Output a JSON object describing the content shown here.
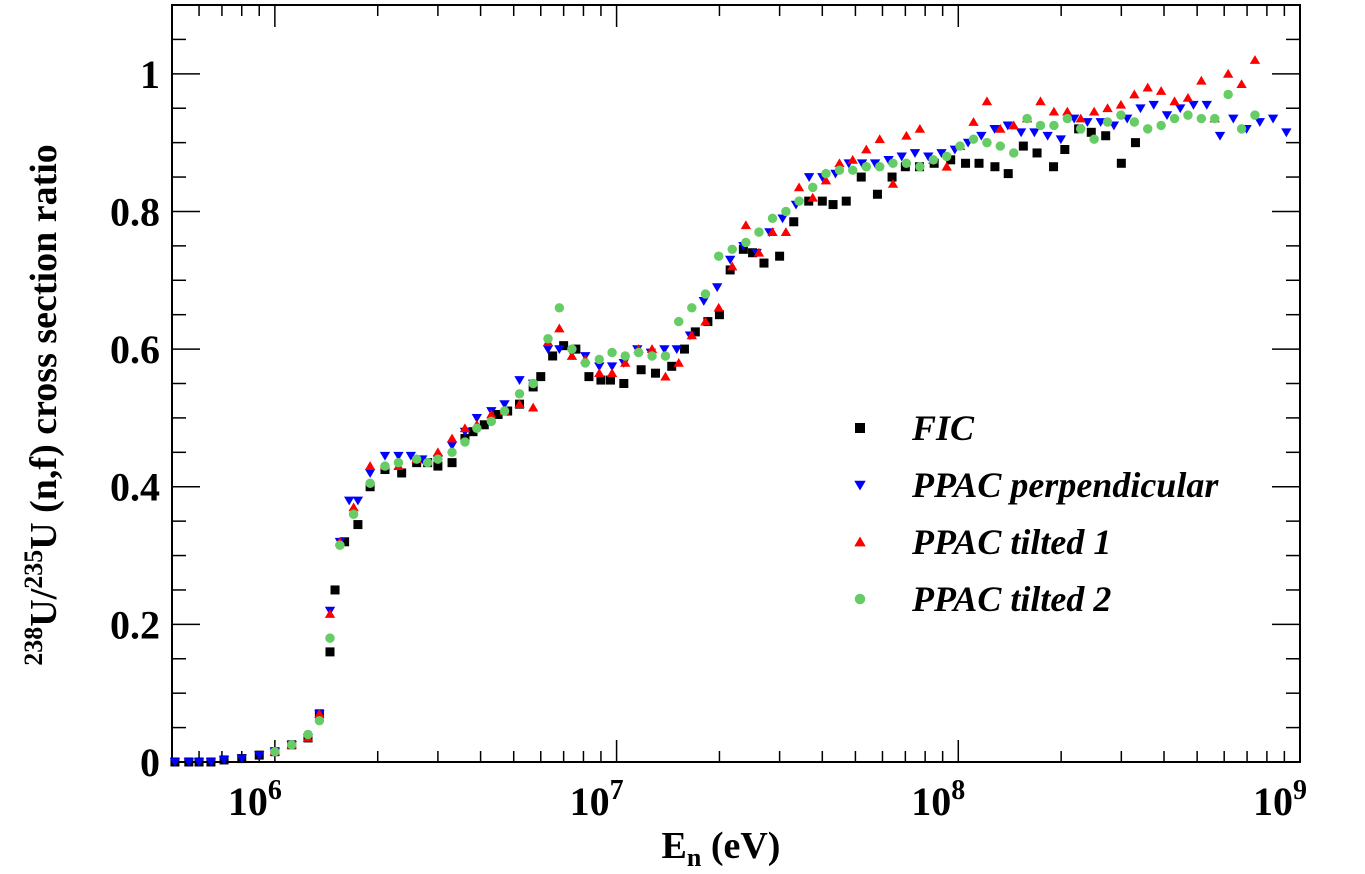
{
  "chart_data": {
    "type": "scatter",
    "xlabel": {
      "main": "E",
      "sub": "n",
      "rest": " (eV)"
    },
    "ylabel": {
      "sup1": "238",
      "mid1": "U/",
      "sup2": "235",
      "rest": "U (n,f) cross section ratio"
    },
    "x_scale": "log",
    "xlim": [
      500000,
      1000000000
    ],
    "ylim": [
      0,
      1.1
    ],
    "x_ticks": [
      {
        "value": 1000000,
        "base": "10",
        "exp": "6"
      },
      {
        "value": 10000000,
        "base": "10",
        "exp": "7"
      },
      {
        "value": 100000000,
        "base": "10",
        "exp": "8"
      },
      {
        "value": 1000000000,
        "base": "10",
        "exp": "9"
      }
    ],
    "y_ticks": [
      {
        "value": 0,
        "label": "0"
      },
      {
        "value": 0.2,
        "label": "0.2"
      },
      {
        "value": 0.4,
        "label": "0.4"
      },
      {
        "value": 0.6,
        "label": "0.6"
      },
      {
        "value": 0.8,
        "label": "0.8"
      },
      {
        "value": 1.0,
        "label": "1"
      }
    ],
    "grid": false,
    "legend_position": "center-right",
    "series": [
      {
        "name": "FIC",
        "marker": "square",
        "color": "#000000",
        "x": [
          510000,
          560000,
          600000,
          650000,
          710000,
          800000,
          900000,
          1000000,
          1120000,
          1250000,
          1350000,
          1450000,
          1500000,
          1600000,
          1750000,
          1900000,
          2100000,
          2350000,
          2600000,
          2800000,
          3000000,
          3300000,
          3600000,
          3800000,
          4100000,
          4500000,
          4800000,
          5200000,
          5700000,
          6000000,
          6500000,
          7000000,
          7600000,
          8300000,
          9000000,
          9600000,
          10500000,
          11800000,
          13000000,
          14500000,
          15800000,
          17000000,
          18500000,
          20000000,
          21500000,
          23500000,
          25000000,
          27000000,
          30000000,
          33000000,
          36500000,
          40000000,
          43000000,
          47000000,
          52000000,
          58000000,
          64000000,
          70000000,
          77000000,
          85000000,
          95000000,
          105000000,
          115000000,
          128000000,
          140000000,
          155000000,
          170000000,
          190000000,
          205000000,
          225000000,
          245000000,
          270000000,
          300000000,
          330000000
        ],
        "y": [
          0.0,
          0.0,
          0.0,
          0.0,
          0.003,
          0.005,
          0.01,
          0.015,
          0.025,
          0.035,
          0.07,
          0.16,
          0.25,
          0.32,
          0.345,
          0.4,
          0.425,
          0.42,
          0.435,
          0.435,
          0.43,
          0.435,
          0.47,
          0.48,
          0.49,
          0.505,
          0.51,
          0.52,
          0.545,
          0.56,
          0.59,
          0.605,
          0.6,
          0.56,
          0.555,
          0.555,
          0.55,
          0.57,
          0.565,
          0.575,
          0.6,
          0.625,
          0.64,
          0.65,
          0.715,
          0.745,
          0.74,
          0.725,
          0.735,
          0.785,
          0.815,
          0.815,
          0.81,
          0.815,
          0.85,
          0.825,
          0.85,
          0.865,
          0.865,
          0.87,
          0.875,
          0.87,
          0.87,
          0.865,
          0.855,
          0.895,
          0.885,
          0.865,
          0.89,
          0.92,
          0.915,
          0.91,
          0.87,
          0.9
        ]
      },
      {
        "name": "PPAC perpendicular",
        "marker": "triangle-down",
        "color": "#0000ff",
        "x": [
          510000,
          560000,
          600000,
          650000,
          710000,
          800000,
          900000,
          1000000,
          1120000,
          1250000,
          1350000,
          1450000,
          1550000,
          1650000,
          1750000,
          1900000,
          2100000,
          2300000,
          2500000,
          2700000,
          3000000,
          3300000,
          3600000,
          3900000,
          4300000,
          4700000,
          5200000,
          5700000,
          6300000,
          6800000,
          7400000,
          8100000,
          8900000,
          9700000,
          10500000,
          11500000,
          12600000,
          13800000,
          15000000,
          16400000,
          18000000,
          19700000,
          21500000,
          23500000,
          25700000,
          28000000,
          30600000,
          33500000,
          36600000,
          40000000,
          43700000,
          47800000,
          52300000,
          57100000,
          62500000,
          68300000,
          74700000,
          81700000,
          89300000,
          97700000,
          106800000,
          116800000,
          127700000,
          139600000,
          152700000,
          167000000,
          182600000,
          199600000,
          218300000,
          238700000,
          261000000,
          285400000,
          312100000,
          341300000,
          373200000,
          408100000,
          446200000,
          487900000,
          533500000,
          583400000,
          638000000,
          697600000,
          762800000,
          834100000,
          912100000
        ],
        "y": [
          0.0,
          0.0,
          0.0,
          0.0,
          0.003,
          0.005,
          0.01,
          0.015,
          0.025,
          0.035,
          0.07,
          0.22,
          0.32,
          0.38,
          0.38,
          0.42,
          0.445,
          0.445,
          0.445,
          0.44,
          0.44,
          0.46,
          0.48,
          0.5,
          0.51,
          0.52,
          0.555,
          0.55,
          0.6,
          0.6,
          0.595,
          0.59,
          0.575,
          0.575,
          0.58,
          0.6,
          0.595,
          0.6,
          0.6,
          0.62,
          0.67,
          0.69,
          0.73,
          0.75,
          0.74,
          0.77,
          0.79,
          0.81,
          0.85,
          0.85,
          0.855,
          0.87,
          0.87,
          0.87,
          0.875,
          0.88,
          0.885,
          0.88,
          0.885,
          0.89,
          0.9,
          0.91,
          0.92,
          0.925,
          0.915,
          0.915,
          0.91,
          0.905,
          0.935,
          0.93,
          0.93,
          0.925,
          0.935,
          0.95,
          0.955,
          0.94,
          0.95,
          0.955,
          0.955,
          0.91,
          0.935,
          0.92,
          0.93,
          0.935,
          0.915
        ]
      },
      {
        "name": "PPAC tilted 1",
        "marker": "triangle-up",
        "color": "#ff0000",
        "x": [
          1000000,
          1120000,
          1250000,
          1350000,
          1450000,
          1550000,
          1700000,
          1900000,
          2100000,
          2300000,
          2600000,
          3000000,
          3300000,
          3600000,
          3900000,
          4300000,
          4700000,
          5200000,
          5700000,
          6300000,
          6800000,
          7400000,
          8100000,
          8900000,
          9700000,
          10600000,
          11600000,
          12700000,
          13900000,
          15200000,
          16600000,
          18200000,
          19900000,
          21800000,
          23900000,
          26100000,
          28600000,
          31300000,
          34200000,
          37500000,
          41000000,
          44900000,
          49100000,
          53800000,
          58900000,
          64400000,
          70500000,
          77200000,
          84500000,
          92500000,
          101200000,
          110800000,
          121300000,
          132700000,
          145300000,
          159000000,
          174000000,
          190500000,
          208500000,
          228200000,
          249800000,
          273400000,
          299200000,
          327500000,
          358400000,
          392300000,
          429400000,
          470000000,
          514400000,
          563000000,
          616200000,
          674500000,
          738200000
        ],
        "y": [
          0.015,
          0.025,
          0.035,
          0.07,
          0.215,
          0.32,
          0.37,
          0.43,
          0.43,
          0.43,
          0.44,
          0.45,
          0.47,
          0.485,
          0.49,
          0.505,
          0.51,
          0.52,
          0.515,
          0.61,
          0.63,
          0.59,
          0.585,
          0.565,
          0.565,
          0.58,
          0.6,
          0.6,
          0.56,
          0.58,
          0.62,
          0.64,
          0.66,
          0.72,
          0.78,
          0.74,
          0.77,
          0.77,
          0.835,
          0.82,
          0.845,
          0.87,
          0.875,
          0.89,
          0.905,
          0.84,
          0.91,
          0.92,
          0.875,
          0.865,
          0.895,
          0.93,
          0.96,
          0.92,
          0.925,
          0.935,
          0.96,
          0.945,
          0.945,
          0.935,
          0.945,
          0.95,
          0.955,
          0.97,
          0.98,
          0.975,
          0.96,
          0.965,
          0.99,
          0.935,
          1.0,
          0.985,
          1.02
        ]
      },
      {
        "name": "PPAC tilted 2",
        "marker": "circle",
        "color": "#66cc66",
        "x": [
          1000000,
          1120000,
          1250000,
          1350000,
          1450000,
          1550000,
          1700000,
          1900000,
          2100000,
          2300000,
          2600000,
          2800000,
          3000000,
          3300000,
          3600000,
          3900000,
          4300000,
          4700000,
          5200000,
          5700000,
          6300000,
          6800000,
          7400000,
          8100000,
          8900000,
          9700000,
          10600000,
          11600000,
          12700000,
          13900000,
          15200000,
          16600000,
          18200000,
          19900000,
          21800000,
          23900000,
          26100000,
          28600000,
          31300000,
          34200000,
          37500000,
          41000000,
          44900000,
          49100000,
          53800000,
          58900000,
          64400000,
          70500000,
          77200000,
          84500000,
          92500000,
          101200000,
          110800000,
          121300000,
          132700000,
          145300000,
          159000000,
          174000000,
          190500000,
          208500000,
          228200000,
          249800000,
          273400000,
          299200000,
          327500000,
          358400000,
          392300000,
          429400000,
          470000000,
          514400000,
          563000000,
          616200000,
          674500000,
          738200000
        ],
        "y": [
          0.015,
          0.025,
          0.04,
          0.06,
          0.18,
          0.315,
          0.36,
          0.405,
          0.43,
          0.435,
          0.44,
          0.435,
          0.44,
          0.45,
          0.465,
          0.485,
          0.495,
          0.51,
          0.535,
          0.55,
          0.615,
          0.66,
          0.6,
          0.58,
          0.585,
          0.595,
          0.59,
          0.595,
          0.59,
          0.59,
          0.64,
          0.66,
          0.68,
          0.735,
          0.745,
          0.755,
          0.77,
          0.79,
          0.8,
          0.815,
          0.835,
          0.855,
          0.86,
          0.86,
          0.865,
          0.865,
          0.87,
          0.87,
          0.865,
          0.875,
          0.88,
          0.895,
          0.905,
          0.9,
          0.895,
          0.885,
          0.935,
          0.925,
          0.925,
          0.935,
          0.92,
          0.905,
          0.93,
          0.94,
          0.93,
          0.92,
          0.925,
          0.935,
          0.94,
          0.935,
          0.935,
          0.97,
          0.92,
          0.94
        ]
      }
    ]
  }
}
